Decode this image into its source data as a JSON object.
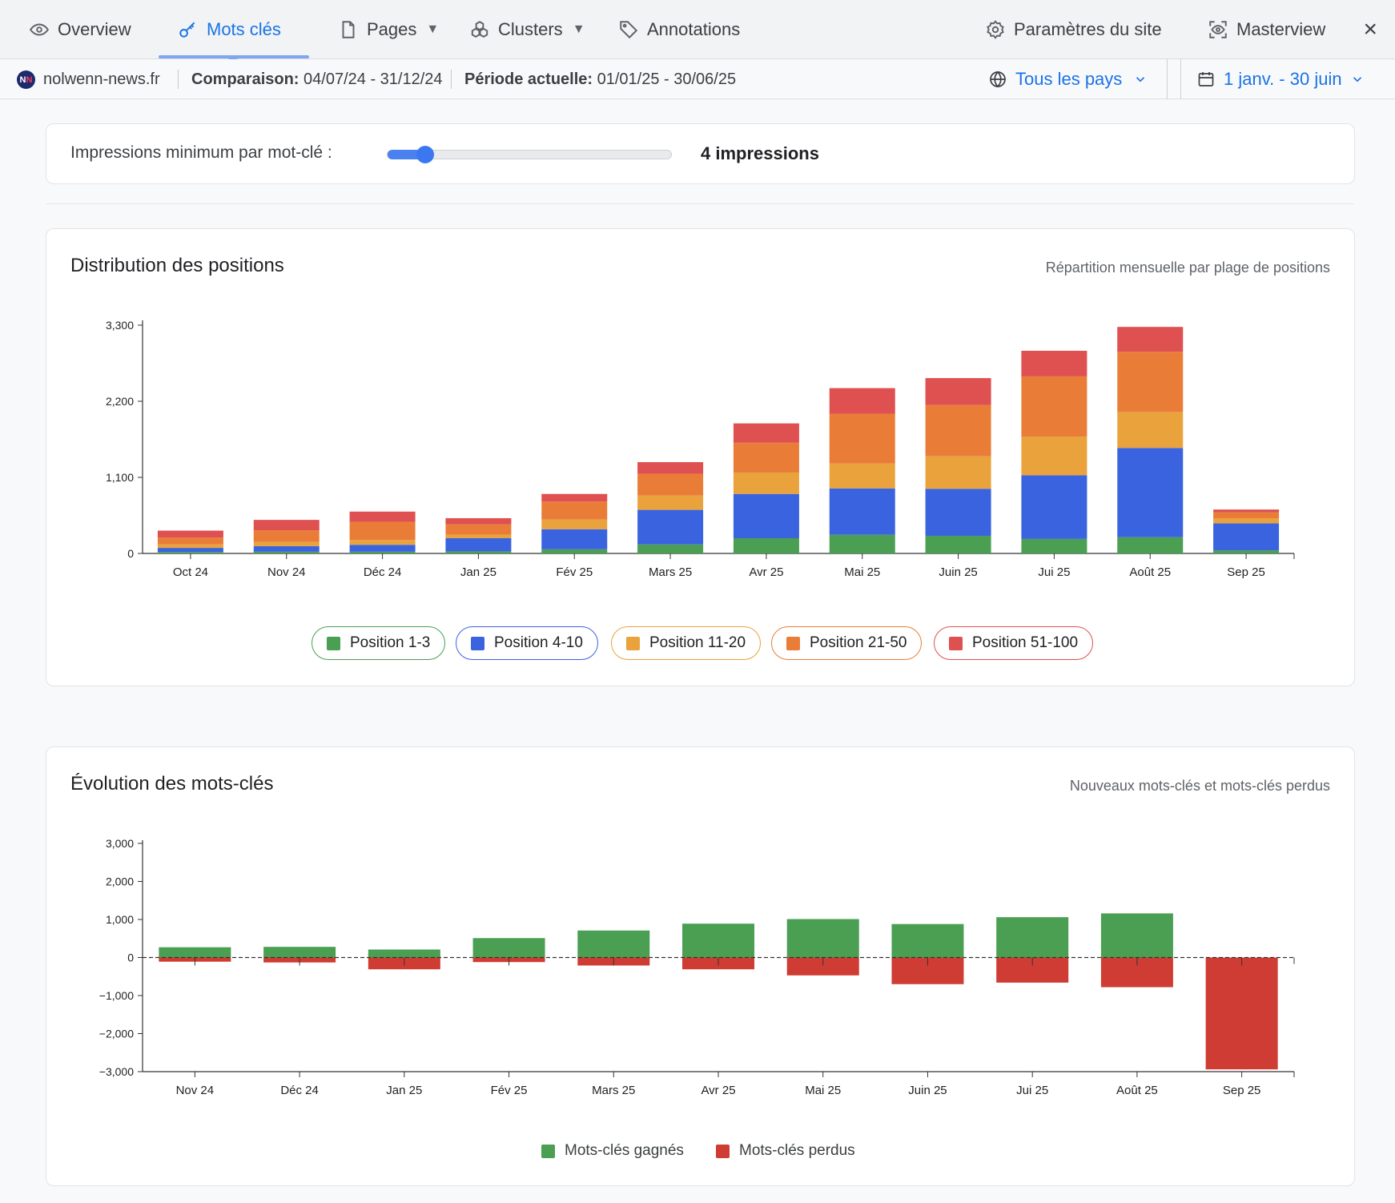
{
  "nav": {
    "overview": "Overview",
    "keywords": "Mots clés",
    "pages": "Pages",
    "clusters": "Clusters",
    "annotations": "Annotations",
    "site_settings": "Paramètres du site",
    "masterview": "Masterview",
    "caret": "▼",
    "close": "×"
  },
  "subbar": {
    "site": "nolwenn-news.fr",
    "comparison_label": "Comparaison:",
    "comparison_value": "04/07/24 - 31/12/24",
    "current_label": "Période actuelle:",
    "current_value": "01/01/25 - 30/06/25",
    "country": "Tous les pays",
    "date_range": "1 janv. - 30 juin"
  },
  "filter": {
    "label": "Impressions minimum par mot-clé :",
    "value": "4 impressions",
    "slider_fraction": 0.12
  },
  "distribution": {
    "title": "Distribution des positions",
    "subtitle": "Répartition mensuelle par plage de positions"
  },
  "evolution": {
    "title": "Évolution des mots-clés",
    "subtitle": "Nouveaux mots-clés et mots-clés perdus"
  },
  "colors": {
    "pos_1_3": "#4a9f53",
    "pos_4_10": "#3a63e0",
    "pos_11_20": "#eaa23c",
    "pos_21_50": "#e97d38",
    "pos_51_100": "#df5050",
    "gained": "#4a9f53",
    "lost": "#cf3c33",
    "accent": "#1a73e8"
  },
  "chart_data": [
    {
      "type": "bar",
      "stacked": true,
      "categories": [
        "Oct 24",
        "Nov 24",
        "Déc 24",
        "Jan 25",
        "Fév 25",
        "Mars 25",
        "Avr 25",
        "Mai 25",
        "Juin 25",
        "Jui 25",
        "Août 25",
        "Sep 25"
      ],
      "series": [
        {
          "name": "Position 1-3",
          "values": [
            20,
            25,
            25,
            30,
            60,
            130,
            220,
            270,
            255,
            210,
            235,
            45
          ]
        },
        {
          "name": "Position 4-10",
          "values": [
            60,
            80,
            100,
            190,
            290,
            500,
            640,
            670,
            680,
            920,
            1290,
            390
          ]
        },
        {
          "name": "Position 11-20",
          "values": [
            50,
            60,
            70,
            50,
            140,
            210,
            310,
            360,
            470,
            560,
            520,
            70
          ]
        },
        {
          "name": "Position 21-50",
          "values": [
            100,
            170,
            260,
            150,
            260,
            310,
            430,
            720,
            740,
            870,
            870,
            90
          ]
        },
        {
          "name": "Position 51-100",
          "values": [
            100,
            150,
            150,
            90,
            110,
            170,
            280,
            370,
            390,
            370,
            360,
            40
          ]
        }
      ],
      "yticks": [
        "0",
        "1,100",
        "2,200",
        "3,300"
      ],
      "ylim": [
        0,
        3300
      ],
      "legend": [
        "Position 1-3",
        "Position 4-10",
        "Position 11-20",
        "Position 21-50",
        "Position 51-100"
      ]
    },
    {
      "type": "bar",
      "categories": [
        "Nov 24",
        "Déc 24",
        "Jan 25",
        "Fév 25",
        "Mars 25",
        "Avr 25",
        "Mai 25",
        "Juin 25",
        "Jui 25",
        "Août 25",
        "Sep 25"
      ],
      "series": [
        {
          "name": "Mots-clés gagnés",
          "values": [
            270,
            280,
            210,
            510,
            710,
            890,
            1010,
            880,
            1060,
            1160,
            0
          ]
        },
        {
          "name": "Mots-clés perdus",
          "values": [
            -110,
            -130,
            -310,
            -120,
            -210,
            -310,
            -470,
            -700,
            -660,
            -780,
            -2940
          ]
        }
      ],
      "yticks": [
        "−3,000",
        "−2,000",
        "−1,000",
        "0",
        "1,000",
        "2,000",
        "3,000"
      ],
      "ylim": [
        -3000,
        3000
      ],
      "legend": [
        "Mots-clés gagnés",
        "Mots-clés perdus"
      ]
    }
  ]
}
